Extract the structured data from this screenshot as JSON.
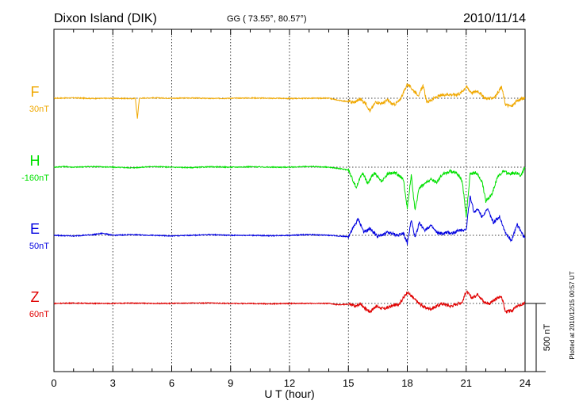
{
  "header": {
    "station": "Dixon Island (DIK)",
    "coords": "GG ( 73.55°,  80.57°)",
    "date": "2010/11/14"
  },
  "footer": {
    "plotted": "Plotted at 2010/12/15 00:57 UT"
  },
  "chart_data": {
    "type": "line",
    "xlabel": "U T (hour)",
    "xlim": [
      0,
      24
    ],
    "xticks": [
      "0",
      "3",
      "6",
      "9",
      "12",
      "15",
      "18",
      "21",
      "24"
    ],
    "grid": true,
    "scale_bar_label": "500 nT",
    "scale_bar_nT": 500,
    "series": [
      {
        "name": "F",
        "offset_label": "30nT",
        "color": "#f0a800",
        "points": [
          [
            0,
            0
          ],
          [
            1,
            3
          ],
          [
            2,
            -2
          ],
          [
            3,
            0
          ],
          [
            4,
            -3
          ],
          [
            4.15,
            0
          ],
          [
            4.25,
            -150
          ],
          [
            4.35,
            0
          ],
          [
            5,
            3
          ],
          [
            6,
            0
          ],
          [
            7,
            2
          ],
          [
            8,
            -2
          ],
          [
            9,
            0
          ],
          [
            10,
            2
          ],
          [
            11,
            0
          ],
          [
            12,
            -2
          ],
          [
            13,
            0
          ],
          [
            14,
            0
          ],
          [
            14.5,
            -15
          ],
          [
            15,
            -25
          ],
          [
            15.3,
            -30
          ],
          [
            15.6,
            -5
          ],
          [
            15.9,
            -40
          ],
          [
            16.1,
            -95
          ],
          [
            16.4,
            -25
          ],
          [
            16.7,
            -40
          ],
          [
            17,
            -15
          ],
          [
            17.3,
            -50
          ],
          [
            17.6,
            -20
          ],
          [
            17.8,
            40
          ],
          [
            18,
            105
          ],
          [
            18.3,
            60
          ],
          [
            18.6,
            20
          ],
          [
            18.8,
            95
          ],
          [
            19,
            -30
          ],
          [
            19.3,
            -5
          ],
          [
            19.6,
            15
          ],
          [
            20,
            30
          ],
          [
            20.4,
            25
          ],
          [
            20.7,
            35
          ],
          [
            21,
            85
          ],
          [
            21.3,
            40
          ],
          [
            21.6,
            55
          ],
          [
            21.9,
            5
          ],
          [
            22.2,
            -5
          ],
          [
            22.5,
            15
          ],
          [
            22.8,
            85
          ],
          [
            23,
            -45
          ],
          [
            23.3,
            -60
          ],
          [
            23.6,
            -20
          ],
          [
            23.8,
            -5
          ],
          [
            24,
            0
          ]
        ]
      },
      {
        "name": "H",
        "offset_label": "-160nT",
        "color": "#00e000",
        "points": [
          [
            0,
            0
          ],
          [
            0.5,
            5
          ],
          [
            1,
            0
          ],
          [
            2,
            5
          ],
          [
            3,
            0
          ],
          [
            4,
            -5
          ],
          [
            5,
            5
          ],
          [
            6,
            0
          ],
          [
            7,
            -3
          ],
          [
            8,
            3
          ],
          [
            9,
            0
          ],
          [
            10,
            3
          ],
          [
            11,
            0
          ],
          [
            12,
            0
          ],
          [
            13,
            5
          ],
          [
            14,
            0
          ],
          [
            15,
            -20
          ],
          [
            15.4,
            -150
          ],
          [
            15.7,
            -40
          ],
          [
            16,
            -120
          ],
          [
            16.3,
            -40
          ],
          [
            16.7,
            -110
          ],
          [
            17,
            -50
          ],
          [
            17.4,
            -40
          ],
          [
            17.8,
            -90
          ],
          [
            18,
            -300
          ],
          [
            18.2,
            -60
          ],
          [
            18.4,
            -320
          ],
          [
            18.6,
            -150
          ],
          [
            18.9,
            -120
          ],
          [
            19.2,
            -90
          ],
          [
            19.5,
            -110
          ],
          [
            19.8,
            -50
          ],
          [
            20.2,
            -30
          ],
          [
            20.5,
            -40
          ],
          [
            20.8,
            -100
          ],
          [
            21,
            -360
          ],
          [
            21.2,
            -50
          ],
          [
            21.5,
            -40
          ],
          [
            21.8,
            -100
          ],
          [
            22,
            -250
          ],
          [
            22.3,
            -200
          ],
          [
            22.6,
            -70
          ],
          [
            22.9,
            -30
          ],
          [
            23.2,
            -50
          ],
          [
            23.5,
            -40
          ],
          [
            23.8,
            -60
          ],
          [
            24,
            0
          ]
        ]
      },
      {
        "name": "E",
        "offset_label": "50nT",
        "color": "#0000e0",
        "points": [
          [
            0,
            0
          ],
          [
            1,
            -5
          ],
          [
            2,
            5
          ],
          [
            2.5,
            15
          ],
          [
            3,
            0
          ],
          [
            4,
            5
          ],
          [
            5,
            0
          ],
          [
            6,
            -5
          ],
          [
            7,
            0
          ],
          [
            8,
            5
          ],
          [
            9,
            0
          ],
          [
            10,
            0
          ],
          [
            11,
            -3
          ],
          [
            12,
            0
          ],
          [
            13,
            5
          ],
          [
            14,
            0
          ],
          [
            15,
            -10
          ],
          [
            15.5,
            120
          ],
          [
            15.8,
            20
          ],
          [
            16.1,
            50
          ],
          [
            16.5,
            -10
          ],
          [
            17,
            20
          ],
          [
            17.5,
            0
          ],
          [
            17.8,
            20
          ],
          [
            18,
            -60
          ],
          [
            18.2,
            110
          ],
          [
            18.4,
            -20
          ],
          [
            18.6,
            90
          ],
          [
            18.9,
            40
          ],
          [
            19.2,
            70
          ],
          [
            19.5,
            20
          ],
          [
            19.8,
            10
          ],
          [
            20,
            20
          ],
          [
            20.3,
            15
          ],
          [
            20.7,
            40
          ],
          [
            21,
            40
          ],
          [
            21.2,
            290
          ],
          [
            21.4,
            170
          ],
          [
            21.6,
            190
          ],
          [
            21.8,
            140
          ],
          [
            22.1,
            190
          ],
          [
            22.4,
            90
          ],
          [
            22.7,
            140
          ],
          [
            23,
            20
          ],
          [
            23.3,
            -40
          ],
          [
            23.6,
            80
          ],
          [
            23.9,
            0
          ],
          [
            24,
            -20
          ]
        ]
      },
      {
        "name": "Z",
        "offset_label": "60nT",
        "color": "#e00000",
        "points": [
          [
            0,
            0
          ],
          [
            1,
            3
          ],
          [
            2,
            0
          ],
          [
            3,
            0
          ],
          [
            4,
            3
          ],
          [
            5,
            0
          ],
          [
            6,
            0
          ],
          [
            7,
            3
          ],
          [
            8,
            3
          ],
          [
            9,
            0
          ],
          [
            10,
            0
          ],
          [
            11,
            -3
          ],
          [
            12,
            0
          ],
          [
            13,
            0
          ],
          [
            14,
            0
          ],
          [
            14.5,
            -10
          ],
          [
            15,
            -5
          ],
          [
            15.4,
            -20
          ],
          [
            15.6,
            0
          ],
          [
            15.9,
            -40
          ],
          [
            16.1,
            -60
          ],
          [
            16.4,
            -20
          ],
          [
            16.8,
            -40
          ],
          [
            17.2,
            -20
          ],
          [
            17.6,
            0
          ],
          [
            17.8,
            40
          ],
          [
            18,
            85
          ],
          [
            18.3,
            40
          ],
          [
            18.6,
            0
          ],
          [
            18.9,
            -30
          ],
          [
            19.2,
            -40
          ],
          [
            19.5,
            -20
          ],
          [
            19.8,
            0
          ],
          [
            20.2,
            -20
          ],
          [
            20.6,
            0
          ],
          [
            20.8,
            10
          ],
          [
            21,
            90
          ],
          [
            21.3,
            40
          ],
          [
            21.6,
            70
          ],
          [
            21.9,
            10
          ],
          [
            22.2,
            0
          ],
          [
            22.5,
            30
          ],
          [
            22.8,
            55
          ],
          [
            23,
            -60
          ],
          [
            23.3,
            -55
          ],
          [
            23.6,
            -20
          ],
          [
            24,
            0
          ]
        ]
      }
    ]
  }
}
